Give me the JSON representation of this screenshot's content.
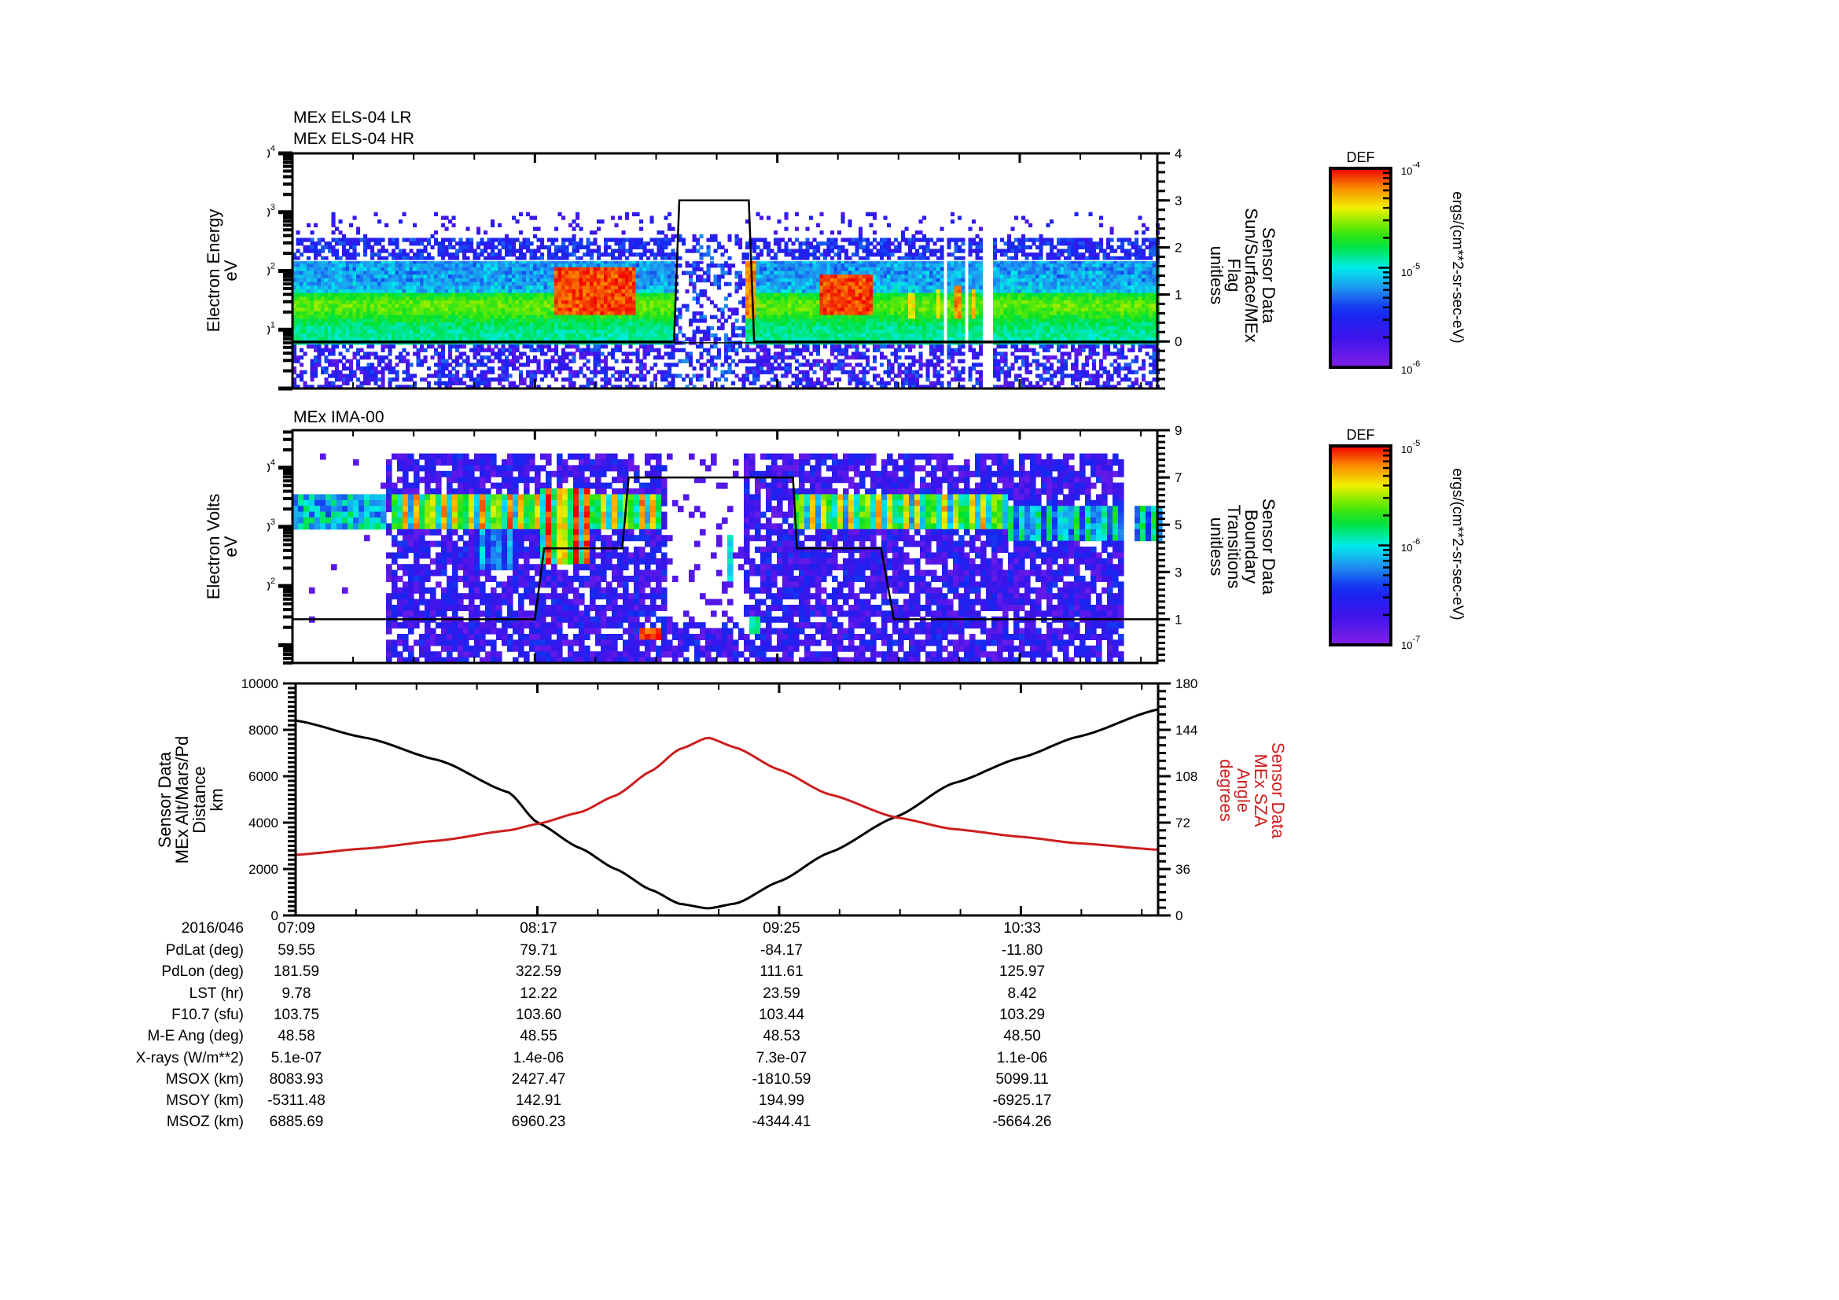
{
  "chart_data": [
    {
      "type": "heatmap",
      "id": "els",
      "titles": [
        "MEx ELS-04 LR",
        "MEx ELS-04 HR"
      ],
      "ylabel": [
        "Electron Energy",
        "eV"
      ],
      "yscale": "log",
      "ylim": [
        1,
        10000
      ],
      "yticks": [
        {
          "base": "10",
          "exp": "1",
          "v": 10
        },
        {
          "base": "10",
          "exp": "2",
          "v": 100
        },
        {
          "base": "10",
          "exp": "3",
          "v": 1000
        },
        {
          "base": "10",
          "exp": "4",
          "v": 10000
        }
      ],
      "y2label": [
        "Sensor Data",
        "Sun/Surface/MEx",
        "Flag",
        "unitless"
      ],
      "y2lim": [
        -1,
        4
      ],
      "y2ticks": [
        0,
        1,
        2,
        3,
        4
      ],
      "colorbar": {
        "title": "DEF",
        "min_label": {
          "base": "10",
          "exp": "-6"
        },
        "mid_label": {
          "base": "10",
          "exp": "-5"
        },
        "max_label": {
          "base": "10",
          "exp": "-4"
        },
        "units": "ergs/(cm**2-sr-sec-eV)"
      },
      "overlay_line": {
        "name": "Sun/Surface/MEx Flag",
        "points": [
          [
            0,
            0
          ],
          [
            107,
            0
          ],
          [
            108.5,
            3
          ],
          [
            128,
            3
          ],
          [
            129.5,
            0
          ],
          [
            242.6,
            0
          ]
        ]
      },
      "features": {
        "background_band": {
          "t0": 0,
          "t1": 242.6,
          "e_lo": 6,
          "e_hi": 150,
          "level": 0.55
        },
        "upper_band": {
          "t0": 0,
          "t1": 242.6,
          "e_lo": 150,
          "e_hi": 350,
          "level": 0.25
        },
        "blobs": [
          {
            "t0": 73,
            "t1": 96,
            "e_lo": 18,
            "e_hi": 110,
            "level": 1.0
          },
          {
            "t0": 127,
            "t1": 129.5,
            "e_lo": 15,
            "e_hi": 160,
            "level": 0.95
          },
          {
            "t0": 147,
            "t1": 162,
            "e_lo": 18,
            "e_hi": 90,
            "level": 1.0
          },
          {
            "t0": 172,
            "t1": 174,
            "e_lo": 15,
            "e_hi": 40,
            "level": 0.85
          },
          {
            "t0": 180,
            "t1": 181.5,
            "e_lo": 15,
            "e_hi": 50,
            "level": 0.85
          },
          {
            "t0": 185.5,
            "t1": 187,
            "e_lo": 15,
            "e_hi": 60,
            "level": 0.95
          },
          {
            "t0": 189.8,
            "t1": 191.2,
            "e_lo": 15,
            "e_hi": 50,
            "level": 0.9
          }
        ],
        "sparse": [
          {
            "t0": 107,
            "t1": 127,
            "level": 0.25
          }
        ],
        "gaps": [
          [
            182.2,
            183.6
          ],
          [
            188.2,
            189.2
          ],
          [
            192.8,
            196.5
          ]
        ],
        "white_line_eV": 150,
        "black_floor_eV": 6
      }
    },
    {
      "type": "heatmap",
      "id": "ima",
      "titles": [
        "MEx IMA-00"
      ],
      "ylabel": [
        "Electron Volts",
        "eV"
      ],
      "yscale": "log",
      "ylim": [
        5,
        43000
      ],
      "yticks": [
        {
          "base": "10",
          "exp": "2",
          "v": 100
        },
        {
          "base": "10",
          "exp": "3",
          "v": 1000
        },
        {
          "base": "10",
          "exp": "4",
          "v": 10000
        }
      ],
      "y2label": [
        "Sensor Data",
        "Boundary",
        "Transitions",
        "unitless"
      ],
      "y2lim": [
        -0.85,
        9
      ],
      "y2ticks": [
        1,
        3,
        5,
        7,
        9
      ],
      "colorbar": {
        "title": "DEF",
        "min_label": {
          "base": "10",
          "exp": "-7"
        },
        "mid_label": {
          "base": "10",
          "exp": "-6"
        },
        "max_label": {
          "base": "10",
          "exp": "-5"
        },
        "units": "ergs/(cm**2-sr-sec-eV)"
      },
      "overlay_line": {
        "name": "Boundary Transitions",
        "points": [
          [
            0,
            1
          ],
          [
            68,
            1
          ],
          [
            70.6,
            4
          ],
          [
            92.5,
            4
          ],
          [
            94.3,
            7
          ],
          [
            140.4,
            7
          ],
          [
            141.5,
            4
          ],
          [
            165.1,
            4
          ],
          [
            168.7,
            1
          ],
          [
            242.6,
            1
          ]
        ]
      },
      "features": {
        "early_band": {
          "t0": 0,
          "t1": 25,
          "e_lo": 900,
          "e_hi": 3500,
          "level": 0.45
        },
        "main_region": {
          "t0": 26,
          "t1": 233,
          "e_lo": 5,
          "e_hi": 16000,
          "level": 0.15
        },
        "stripes": [
          {
            "t0": 27,
            "t1": 102,
            "e_lo": 900,
            "e_hi": 3500,
            "level": 0.9
          },
          {
            "t0": 50,
            "t1": 63,
            "e_lo": 180,
            "e_hi": 900,
            "level": 0.45
          },
          {
            "t0": 68,
            "t1": 82,
            "e_lo": 250,
            "e_hi": 4500,
            "level": 1.0
          },
          {
            "t0": 140,
            "t1": 200,
            "e_lo": 900,
            "e_hi": 3500,
            "level": 0.85
          },
          {
            "t0": 200,
            "t1": 233,
            "e_lo": 600,
            "e_hi": 2500,
            "level": 0.6
          },
          {
            "t0": 235,
            "t1": 242.6,
            "e_lo": 600,
            "e_hi": 2500,
            "level": 0.6
          }
        ],
        "blobs": [
          {
            "t0": 97,
            "t1": 102,
            "e_lo": 12,
            "e_hi": 18,
            "level": 1.0
          },
          {
            "t0": 121,
            "t1": 123,
            "e_lo": 120,
            "e_hi": 700,
            "level": 0.55
          },
          {
            "t0": 128,
            "t1": 131,
            "e_lo": 14,
            "e_hi": 30,
            "level": 0.6
          }
        ],
        "sparse": [
          {
            "t0": 104,
            "t1": 126,
            "level": 0.12
          }
        ],
        "gaps": [
          [
            232.6,
            235.0
          ]
        ]
      }
    },
    {
      "type": "line",
      "id": "orbit",
      "ylabel": [
        "Sensor Data",
        "MEx Alt/Mars/Pd",
        "Distance",
        "km"
      ],
      "ylim": [
        0,
        10000
      ],
      "yticks": [
        0,
        2000,
        4000,
        6000,
        8000,
        10000
      ],
      "y2label": [
        "Sensor Data",
        "MEx SZA",
        "Angle",
        "degrees"
      ],
      "y2lim": [
        0,
        180
      ],
      "y2ticks": [
        0,
        36,
        72,
        108,
        144,
        180
      ],
      "series": [
        {
          "name": "MEx Alt/Mars/Pd Distance (km)",
          "axis": "left",
          "color": "#000000",
          "t": [
            0,
            20,
            40,
            60,
            68,
            80,
            90,
            100,
            108,
            116,
            124,
            136,
            150,
            168.9,
            185,
            204,
            220,
            242.6
          ],
          "values": [
            8400,
            7650,
            6700,
            5300,
            4000,
            2900,
            2000,
            1100,
            500,
            300,
            520,
            1460,
            2700,
            4250,
            5700,
            6800,
            7700,
            8880
          ]
        },
        {
          "name": "MEx SZA Angle (degrees)",
          "axis": "right",
          "color": "#cc1f1f",
          "t": [
            0,
            20,
            40,
            60,
            68,
            80,
            90,
            100,
            108,
            116,
            124,
            136,
            150,
            168.9,
            185,
            204,
            220,
            242.6
          ],
          "values": [
            47,
            52,
            58,
            66,
            71,
            80,
            93,
            112,
            129,
            138,
            130,
            113,
            94,
            76,
            67,
            61,
            56,
            51
          ]
        }
      ]
    }
  ],
  "time_axis": {
    "date": "2016/046",
    "start": "07:09",
    "span_minutes": 242.6,
    "major_every_min": 68,
    "minor_every_min": 17,
    "labels": [
      "07:09",
      "08:17",
      "09:25",
      "10:33"
    ]
  },
  "ephemeris": {
    "rows": [
      {
        "label": "PdLat (deg)",
        "values": [
          "59.55",
          "79.71",
          "-84.17",
          "-11.80"
        ]
      },
      {
        "label": "PdLon (deg)",
        "values": [
          "181.59",
          "322.59",
          "111.61",
          "125.97"
        ]
      },
      {
        "label": "LST (hr)",
        "values": [
          "9.78",
          "12.22",
          "23.59",
          "8.42"
        ]
      },
      {
        "label": "F10.7 (sfu)",
        "values": [
          "103.75",
          "103.60",
          "103.44",
          "103.29"
        ]
      },
      {
        "label": "M-E Ang (deg)",
        "values": [
          "48.58",
          "48.55",
          "48.53",
          "48.50"
        ]
      },
      {
        "label": "X-rays (W/m**2)",
        "values": [
          "5.1e-07",
          "1.4e-06",
          "7.3e-07",
          "1.1e-06"
        ]
      },
      {
        "label": "MSOX (km)",
        "values": [
          "8083.93",
          "2427.47",
          "-1810.59",
          "5099.11"
        ]
      },
      {
        "label": "MSOY (km)",
        "values": [
          "-5311.48",
          "142.91",
          "194.99",
          "-6925.17"
        ]
      },
      {
        "label": "MSOZ (km)",
        "values": [
          "6885.69",
          "6960.23",
          "-4344.41",
          "-5664.26"
        ]
      }
    ]
  },
  "colors": {
    "axis": "#000000",
    "sza_red": "#cc1f1f",
    "alt_black": "#000000"
  }
}
